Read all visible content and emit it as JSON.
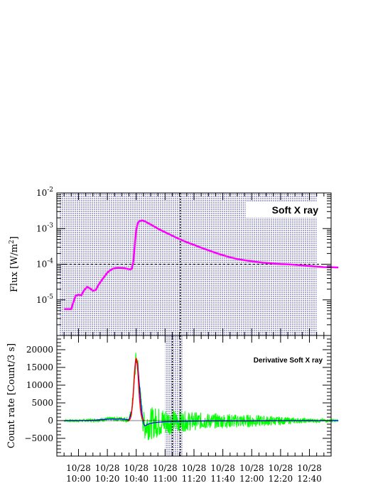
{
  "chart_data": [
    {
      "type": "line",
      "panel": "top",
      "legend_label": "Soft X ray",
      "ylabel_main": "Flux [W/m",
      "ylabel_sup": "2",
      "ylabel_end": "]",
      "yscale": "log",
      "ylim": [
        1e-06,
        0.01
      ],
      "y_ticks": [
        {
          "base": "10",
          "exp": "-5",
          "value": 1e-05
        },
        {
          "base": "10",
          "exp": "-4",
          "value": 0.0001
        },
        {
          "base": "10",
          "exp": "-3",
          "value": 0.001
        },
        {
          "base": "10",
          "exp": "-2",
          "value": 0.01
        }
      ],
      "reference_level": 0.0001,
      "x_minutes_after_0950": [
        0,
        5,
        6,
        8,
        10,
        12,
        14,
        16,
        18,
        20,
        22,
        24,
        26,
        28,
        30,
        32,
        34,
        36,
        38,
        40,
        42,
        44,
        46,
        47,
        48,
        49,
        50,
        51,
        52,
        54,
        56,
        60,
        66,
        72,
        78,
        84,
        90,
        96,
        102,
        108,
        114,
        120,
        126,
        132,
        138,
        144,
        150,
        156,
        162,
        168,
        174,
        180,
        186,
        190
      ],
      "flux": [
        5.5e-06,
        5.5e-06,
        7.5e-06,
        1.3e-05,
        1.4e-05,
        1.35e-05,
        1.9e-05,
        2.3e-05,
        2.1e-05,
        1.8e-05,
        1.9e-05,
        2.7e-05,
        3.5e-05,
        4.5e-05,
        5.8e-05,
        6.8e-05,
        7.5e-05,
        7.8e-05,
        7.9e-05,
        7.8e-05,
        7.7e-05,
        7.4e-05,
        7.2e-05,
        7.5e-05,
        0.00012,
        0.00035,
        0.0009,
        0.0014,
        0.0016,
        0.0017,
        0.0016,
        0.0013,
        0.00095,
        0.00072,
        0.00055,
        0.00043,
        0.00035,
        0.00028,
        0.00023,
        0.00019,
        0.00016,
        0.00014,
        0.000128,
        0.000118,
        0.00011,
        0.000105,
        0.000101,
        9.9e-05,
        9.5e-05,
        9.1e-05,
        8.6e-05,
        8.3e-05,
        8.2e-05,
        8.1e-05
      ],
      "line_color": "#ff00ff"
    },
    {
      "type": "line",
      "panel": "bottom",
      "legend_label": "Derivative Soft X ray",
      "ylabel": "Count rate [Count/3 s]",
      "ylim": [
        -10000,
        24000
      ],
      "y_tick_values": [
        -5000,
        0,
        5000,
        10000,
        15000,
        20000
      ],
      "y_tick_labels": [
        "−5000",
        "0",
        "5000",
        "10000",
        "15000",
        "20000"
      ],
      "x_minutes_after_0950": [
        0,
        10,
        20,
        30,
        40,
        45,
        47,
        48,
        49,
        50,
        51,
        52,
        53,
        54,
        55,
        56,
        58,
        62,
        70,
        80,
        100,
        130,
        160,
        190
      ],
      "count_rate": [
        0,
        0,
        100,
        400,
        500,
        200,
        3000,
        8000,
        14000,
        17500,
        16000,
        11000,
        6000,
        2000,
        -800,
        -1500,
        -1000,
        -600,
        -300,
        -200,
        -100,
        -100,
        0,
        0
      ],
      "noise_envelope": [
        300,
        400,
        500,
        600,
        700,
        700,
        1500,
        2500,
        3000,
        3000,
        2500,
        2500,
        2500,
        3000,
        3500,
        4000,
        4500,
        4500,
        4000,
        3000,
        2200,
        1800,
        800,
        300
      ],
      "series_colors": {
        "noisy": "#00ff00",
        "smooth": "#0000ff",
        "fit": "#ff0000"
      }
    }
  ],
  "x_axis": {
    "ticks": [
      {
        "date": "10/28",
        "time": "10:00",
        "minutes": 10
      },
      {
        "date": "10/28",
        "time": "10:20",
        "minutes": 30
      },
      {
        "date": "10/28",
        "time": "10:40",
        "minutes": 50
      },
      {
        "date": "10/28",
        "time": "11:00",
        "minutes": 70
      },
      {
        "date": "10/28",
        "time": "11:20",
        "minutes": 90
      },
      {
        "date": "10/28",
        "time": "11:40",
        "minutes": 110
      },
      {
        "date": "10/28",
        "time": "12:00",
        "minutes": 130
      },
      {
        "date": "10/28",
        "time": "12:20",
        "minutes": 150
      },
      {
        "date": "10/28",
        "time": "12:40",
        "minutes": 170
      }
    ],
    "range_minutes": [
      -5,
      185
    ]
  },
  "shaded_interval_top_minutes": [
    -3,
    175
  ],
  "shaded_interval_bottom_minutes": [
    70,
    82
  ],
  "peak_marker_minutes": 80.5,
  "derivative_peak_marker_minutes": 75,
  "shade_color": "#9999cc"
}
